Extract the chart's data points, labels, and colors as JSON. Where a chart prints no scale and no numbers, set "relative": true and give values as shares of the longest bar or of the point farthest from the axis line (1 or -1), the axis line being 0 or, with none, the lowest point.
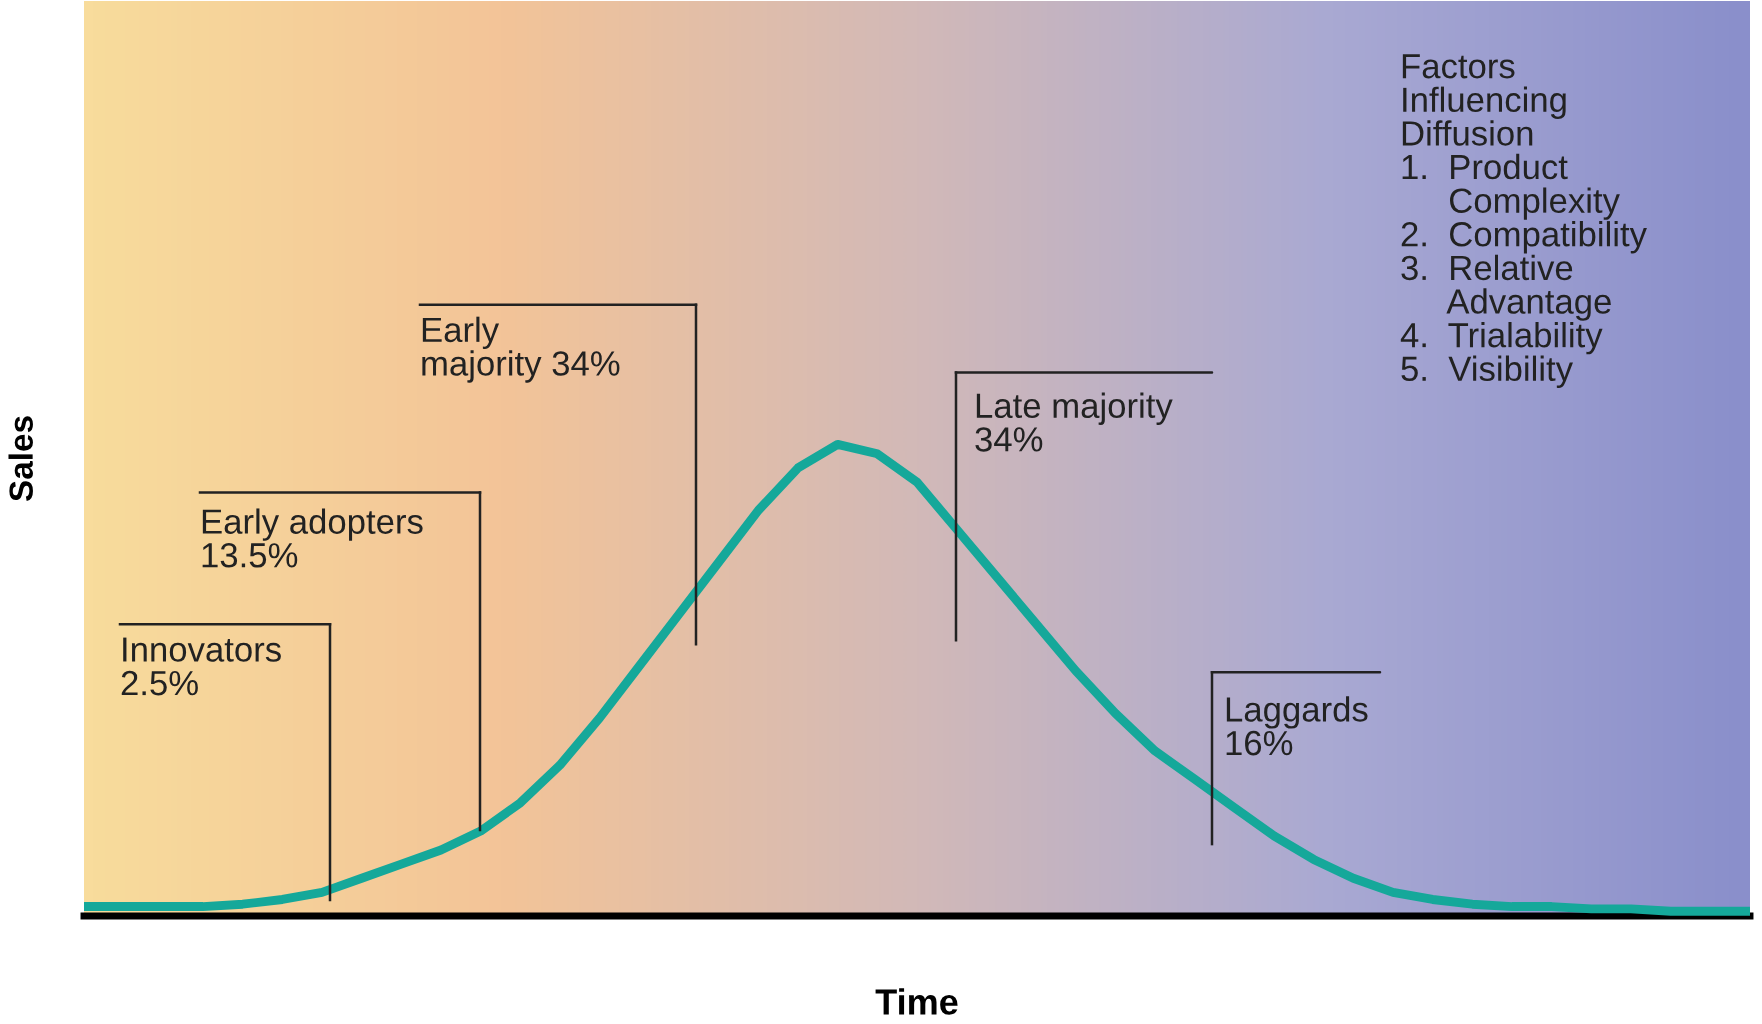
{
  "chart_data": {
    "type": "line",
    "relative": true,
    "xlabel": "Time",
    "ylabel": "Sales",
    "color": "#15a89a",
    "categories": [
      null,
      null,
      null,
      null,
      null,
      null,
      null,
      null,
      null,
      null,
      null,
      null,
      null,
      null,
      null,
      null,
      null,
      null,
      null,
      null,
      null,
      null,
      null,
      null,
      null,
      null,
      null,
      null,
      null,
      null,
      null,
      null,
      null,
      null,
      null,
      null,
      null,
      null,
      null,
      null,
      null,
      null,
      null
    ],
    "values": [
      0.02,
      0.02,
      0.02,
      0.02,
      0.025,
      0.035,
      0.05,
      0.08,
      0.11,
      0.14,
      0.18,
      0.24,
      0.32,
      0.42,
      0.53,
      0.64,
      0.75,
      0.86,
      0.95,
      1.0,
      0.98,
      0.92,
      0.82,
      0.72,
      0.62,
      0.52,
      0.43,
      0.35,
      0.29,
      0.23,
      0.17,
      0.12,
      0.08,
      0.05,
      0.035,
      0.025,
      0.02,
      0.02,
      0.015,
      0.015,
      0.01,
      0.01,
      0.01
    ],
    "annotations": [
      "Innovators\n2.5%",
      "Early adopters\n13.5%",
      "Early\nmajority 34%",
      "Late majority\n34%",
      "Laggards\n16%",
      "Factors\nInfluencing\nDiffusion\n1.  Product\n     Complexity\n2.  Compatibility\n3.  Relative\n     Advantage\n4.  Trialability\n5.  Visibility"
    ]
  }
}
